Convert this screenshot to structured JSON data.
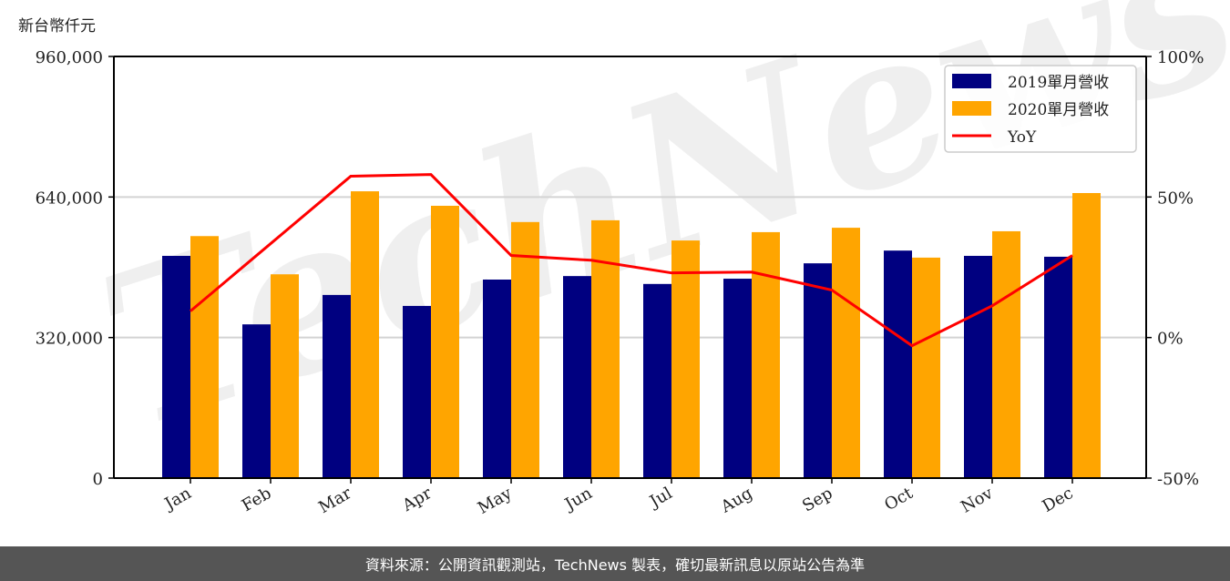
{
  "unit_label": "新台幣仟元",
  "footer": "資料來源：公開資訊觀測站，TechNews 製表，確切最新訊息以原站公告為準",
  "watermark": "TechNews",
  "colors": {
    "series_2019": "#000080",
    "series_2020": "#FFA500",
    "yoy": "#FF0000",
    "grid": "#d3d3d3",
    "footer_bg": "#555555"
  },
  "chart_data": {
    "type": "bar",
    "title": "",
    "xlabel": "",
    "ylabel": "新台幣仟元",
    "y2label": "YoY",
    "categories": [
      "Jan",
      "Feb",
      "Mar",
      "Apr",
      "May",
      "Jun",
      "Jul",
      "Aug",
      "Sep",
      "Oct",
      "Nov",
      "Dec"
    ],
    "series": [
      {
        "name": "2019單月營收",
        "type": "bar",
        "axis": "left",
        "values": [
          506000,
          350000,
          417000,
          392000,
          452000,
          460000,
          442000,
          454000,
          489000,
          518000,
          506000,
          504000
        ]
      },
      {
        "name": "2020單月營收",
        "type": "bar",
        "axis": "left",
        "values": [
          551000,
          464000,
          653000,
          620000,
          583000,
          587000,
          541000,
          560000,
          570000,
          502000,
          562000,
          649000
        ]
      },
      {
        "name": "YoY",
        "type": "line",
        "axis": "right",
        "values": [
          9.4,
          33.4,
          57.4,
          58.0,
          29.2,
          27.5,
          23.0,
          23.3,
          16.9,
          -2.9,
          11.3,
          29.2
        ]
      }
    ],
    "ylim": [
      0,
      960000
    ],
    "yticks": [
      0,
      320000,
      640000,
      960000
    ],
    "ytick_labels": [
      "0",
      "320,000",
      "640,000",
      "960,000"
    ],
    "y2lim": [
      -50,
      100
    ],
    "y2ticks": [
      -50,
      0,
      50,
      100
    ],
    "y2tick_labels": [
      "-50%",
      "0%",
      "50%",
      "100%"
    ],
    "grid": true,
    "legend_position": "upper right",
    "legend": [
      "2019單月營收",
      "2020單月營收",
      "YoY"
    ]
  }
}
